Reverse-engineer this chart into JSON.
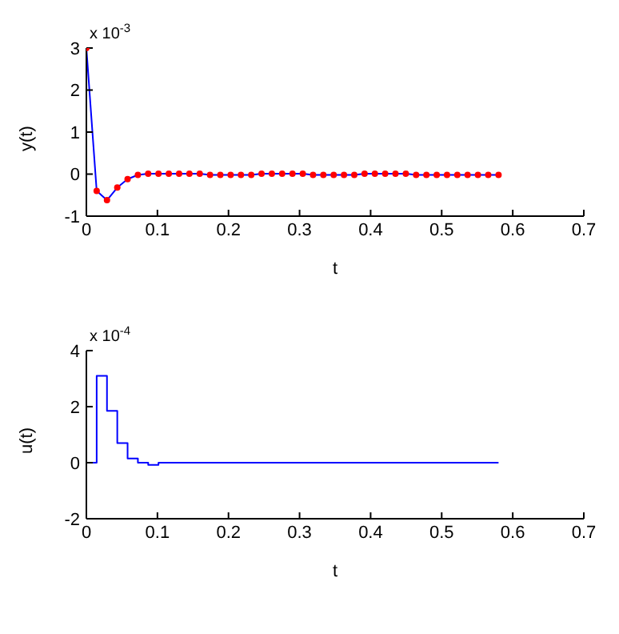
{
  "chart_data": [
    {
      "type": "line",
      "xlabel": "t",
      "ylabel": "y(t)",
      "annotations": [
        "x 10$^{-3}$"
      ],
      "xlim": [
        0,
        0.7
      ],
      "xticks": [
        0,
        0.1,
        0.2,
        0.3,
        0.4,
        0.5,
        0.6,
        0.7
      ],
      "ylim": [
        -1,
        3
      ],
      "yticks": [
        -1,
        0,
        1,
        2,
        3
      ],
      "x": [
        0,
        0.0145,
        0.029,
        0.0435,
        0.058,
        0.0725,
        0.087,
        0.1015,
        0.116,
        0.1305,
        0.145,
        0.1595,
        0.174,
        0.1885,
        0.203,
        0.2175,
        0.232,
        0.2465,
        0.261,
        0.2755,
        0.29,
        0.3045,
        0.319,
        0.3335,
        0.348,
        0.3625,
        0.377,
        0.3915,
        0.406,
        0.4205,
        0.435,
        0.4495,
        0.464,
        0.4785,
        0.493,
        0.5075,
        0.522,
        0.5365,
        0.551,
        0.5655,
        0.58
      ],
      "series": [
        {
          "color": "#0000ff",
          "marker": "none",
          "values": [
            3,
            -0.4,
            -0.62,
            -0.32,
            -0.12,
            -0.02,
            0.01,
            0.01,
            0.01,
            0.01,
            0.01,
            0.01,
            -0.02,
            -0.02,
            -0.02,
            -0.02,
            -0.02,
            0.01,
            0.01,
            0.01,
            0.01,
            0.01,
            -0.02,
            -0.02,
            -0.02,
            -0.02,
            -0.02,
            0.01,
            0.01,
            0.01,
            0.01,
            0.01,
            -0.02,
            -0.02,
            -0.02,
            -0.02,
            -0.02,
            -0.02,
            -0.02,
            -0.02,
            -0.02
          ]
        },
        {
          "type": "scatter",
          "color": "#ff0000",
          "marker": "circle",
          "values": [
            3,
            -0.4,
            -0.62,
            -0.32,
            -0.12,
            -0.02,
            0.01,
            0.01,
            0.01,
            0.01,
            0.01,
            0.01,
            -0.02,
            -0.02,
            -0.02,
            -0.02,
            -0.02,
            0.01,
            0.01,
            0.01,
            0.01,
            0.01,
            -0.02,
            -0.02,
            -0.02,
            -0.02,
            -0.02,
            0.01,
            0.01,
            0.01,
            0.01,
            0.01,
            -0.02,
            -0.02,
            -0.02,
            -0.02,
            -0.02,
            -0.02,
            -0.02,
            -0.02,
            -0.02
          ]
        }
      ]
    },
    {
      "type": "step",
      "xlabel": "t",
      "ylabel": "u(t)",
      "annotations": [
        "x 10$^{-4}$"
      ],
      "xlim": [
        0,
        0.7
      ],
      "xticks": [
        0,
        0.1,
        0.2,
        0.3,
        0.4,
        0.5,
        0.6,
        0.7
      ],
      "ylim": [
        -2,
        4
      ],
      "yticks": [
        -2,
        0,
        2,
        4
      ],
      "x": [
        0,
        0.0145,
        0.029,
        0.0435,
        0.058,
        0.0725,
        0.087,
        0.1015,
        0.116,
        0.1305,
        0.145,
        0.1595,
        0.174,
        0.1885,
        0.203,
        0.2175,
        0.232,
        0.2465,
        0.261,
        0.2755,
        0.29,
        0.3045,
        0.319,
        0.3335,
        0.348,
        0.3625,
        0.377,
        0.3915,
        0.406,
        0.4205,
        0.435,
        0.4495,
        0.464,
        0.4785,
        0.493,
        0.5075,
        0.522,
        0.5365,
        0.551,
        0.5655,
        0.58
      ],
      "series": [
        {
          "color": "#0000ff",
          "values": [
            0,
            3.1,
            1.85,
            0.7,
            0.15,
            0,
            -0.08,
            0,
            0,
            0,
            0,
            0,
            0,
            0,
            0,
            0,
            0,
            0,
            0,
            0,
            0,
            0,
            0,
            0,
            0,
            0,
            0,
            0,
            0,
            0,
            0,
            0,
            0,
            0,
            0,
            0,
            0,
            0,
            0,
            0,
            0
          ]
        }
      ]
    }
  ]
}
